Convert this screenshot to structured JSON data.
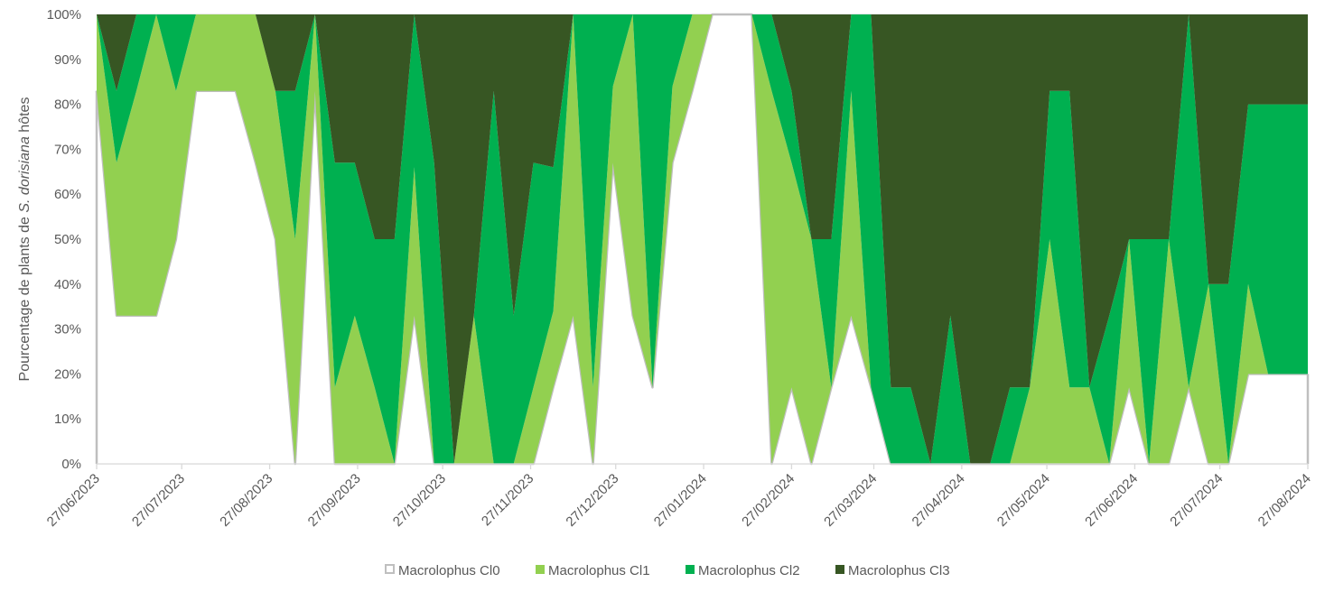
{
  "chart_data": {
    "type": "area",
    "stacked": "percent",
    "title": "",
    "xlabel": "",
    "ylabel_prefix": "Pourcentage de plants de ",
    "ylabel_italic": "S. dorisiana",
    "ylabel_suffix": " hôtes",
    "ylim": [
      0,
      100
    ],
    "y_ticks": [
      0,
      10,
      20,
      30,
      40,
      50,
      60,
      70,
      80,
      90,
      100
    ],
    "y_tick_labels": [
      "0%",
      "10%",
      "20%",
      "30%",
      "40%",
      "50%",
      "60%",
      "70%",
      "80%",
      "90%",
      "100%"
    ],
    "x_tick_labels": [
      "27/06/2023",
      "27/07/2023",
      "27/08/2023",
      "27/09/2023",
      "27/10/2023",
      "27/11/2023",
      "27/12/2023",
      "27/01/2024",
      "27/02/2024",
      "27/03/2024",
      "27/04/2024",
      "27/05/2024",
      "27/06/2024",
      "27/07/2024",
      "27/08/2024"
    ],
    "x_range": [
      "2023-06-27",
      "2024-08-27"
    ],
    "grid": "horizontal",
    "legend_position": "bottom",
    "colors": {
      "Macrolophus Cl0": "#ffffff",
      "Macrolophus Cl0 border": "#bfbfbf",
      "Macrolophus Cl1": "#92d050",
      "Macrolophus Cl2": "#00b050",
      "Macrolophus Cl3": "#375623",
      "grid": "#d9d9d9",
      "text": "#595959"
    },
    "x": [
      "2023-06-27",
      "2023-07-04",
      "2023-07-11",
      "2023-07-18",
      "2023-07-25",
      "2023-08-01",
      "2023-08-08",
      "2023-08-15",
      "2023-08-22",
      "2023-08-29",
      "2023-09-05",
      "2023-09-12",
      "2023-09-19",
      "2023-09-26",
      "2023-10-03",
      "2023-10-10",
      "2023-10-17",
      "2023-10-24",
      "2023-10-31",
      "2023-11-07",
      "2023-11-14",
      "2023-11-21",
      "2023-11-28",
      "2023-12-05",
      "2023-12-12",
      "2023-12-19",
      "2023-12-26",
      "2024-01-02",
      "2024-01-09",
      "2024-01-16",
      "2024-01-23",
      "2024-01-30",
      "2024-02-06",
      "2024-02-13",
      "2024-02-20",
      "2024-02-27",
      "2024-03-05",
      "2024-03-12",
      "2024-03-19",
      "2024-03-26",
      "2024-04-02",
      "2024-04-09",
      "2024-04-16",
      "2024-04-23",
      "2024-04-30",
      "2024-05-07",
      "2024-05-14",
      "2024-05-21",
      "2024-05-28",
      "2024-06-04",
      "2024-06-11",
      "2024-06-18",
      "2024-06-25",
      "2024-07-02",
      "2024-07-09",
      "2024-07-16",
      "2024-07-23",
      "2024-07-30",
      "2024-08-06",
      "2024-08-13",
      "2024-08-20",
      "2024-08-27"
    ],
    "series": [
      {
        "name": "Macrolophus Cl0",
        "values": [
          83,
          33,
          33,
          33,
          50,
          83,
          83,
          83,
          67,
          50,
          0,
          83,
          0,
          0,
          0,
          0,
          33,
          0,
          0,
          0,
          0,
          0,
          0,
          17,
          33,
          0,
          67,
          33,
          17,
          67,
          83,
          100,
          100,
          100,
          0,
          17,
          0,
          17,
          33,
          17,
          0,
          0,
          0,
          0,
          0,
          0,
          0,
          0,
          0,
          0,
          0,
          0,
          17,
          0,
          0,
          17,
          0,
          0,
          20,
          20,
          20,
          20
        ]
      },
      {
        "name": "Macrolophus Cl1",
        "values": [
          17,
          34,
          50,
          67,
          33,
          17,
          17,
          17,
          33,
          33,
          50,
          17,
          17,
          33,
          17,
          0,
          33,
          0,
          0,
          33,
          0,
          0,
          17,
          17,
          67,
          17,
          17,
          67,
          0,
          17,
          17,
          0,
          0,
          0,
          83,
          50,
          50,
          0,
          50,
          0,
          0,
          0,
          0,
          0,
          0,
          0,
          0,
          17,
          50,
          17,
          17,
          0,
          33,
          0,
          50,
          0,
          40,
          0,
          20,
          0,
          0,
          0
        ]
      },
      {
        "name": "Macrolophus Cl2",
        "values": [
          0,
          16,
          17,
          0,
          17,
          0,
          0,
          0,
          0,
          0,
          33,
          0,
          50,
          34,
          33,
          50,
          34,
          67,
          0,
          0,
          83,
          33,
          50,
          32,
          0,
          83,
          16,
          0,
          83,
          16,
          0,
          0,
          0,
          0,
          17,
          16,
          0,
          33,
          17,
          83,
          17,
          17,
          0,
          33,
          0,
          0,
          17,
          0,
          33,
          66,
          0,
          33,
          0,
          50,
          0,
          83,
          0,
          40,
          40,
          60,
          60,
          60
        ]
      },
      {
        "name": "Macrolophus Cl3",
        "values": [
          0,
          17,
          0,
          0,
          0,
          0,
          0,
          0,
          0,
          17,
          17,
          0,
          33,
          33,
          50,
          50,
          0,
          33,
          100,
          67,
          17,
          67,
          33,
          34,
          0,
          0,
          0,
          0,
          0,
          0,
          0,
          0,
          0,
          0,
          0,
          17,
          50,
          50,
          0,
          0,
          83,
          83,
          100,
          67,
          100,
          100,
          83,
          83,
          17,
          17,
          83,
          67,
          50,
          50,
          50,
          0,
          60,
          60,
          20,
          20,
          20,
          20
        ]
      }
    ]
  }
}
